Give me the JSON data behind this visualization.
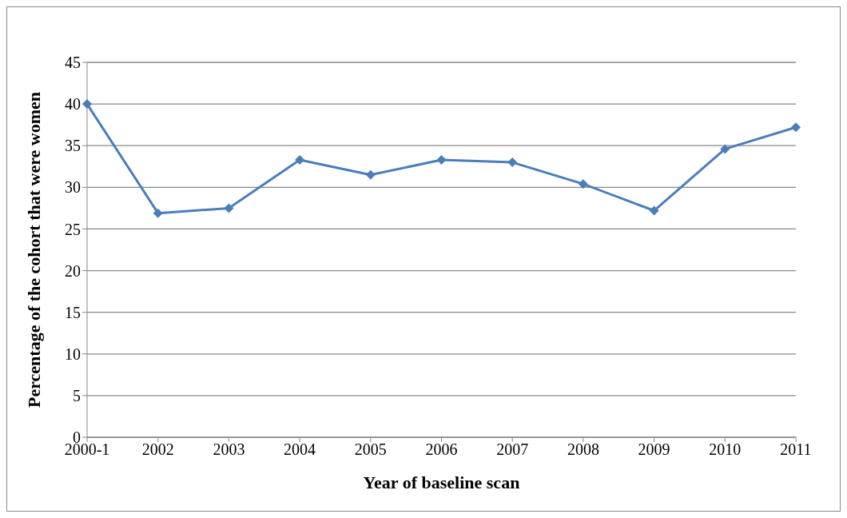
{
  "chart_data": {
    "type": "line",
    "xlabel": "Year of baseline scan",
    "ylabel": "Percentage of the cohort that were women",
    "categories": [
      "2000-1",
      "2002",
      "2003",
      "2004",
      "2005",
      "2006",
      "2007",
      "2008",
      "2009",
      "2010",
      "2011"
    ],
    "series": [
      {
        "color": "#4a7ebb",
        "values": [
          40,
          26.9,
          27.5,
          33.3,
          31.5,
          33.3,
          33.0,
          30.4,
          27.2,
          34.6,
          37.2
        ]
      }
    ],
    "ylim": [
      0,
      45
    ],
    "yticks": [
      0,
      5,
      10,
      15,
      20,
      25,
      30,
      35,
      40,
      45
    ],
    "grid": "y",
    "legend": false,
    "marker": "diamond",
    "line_style": "solid"
  }
}
